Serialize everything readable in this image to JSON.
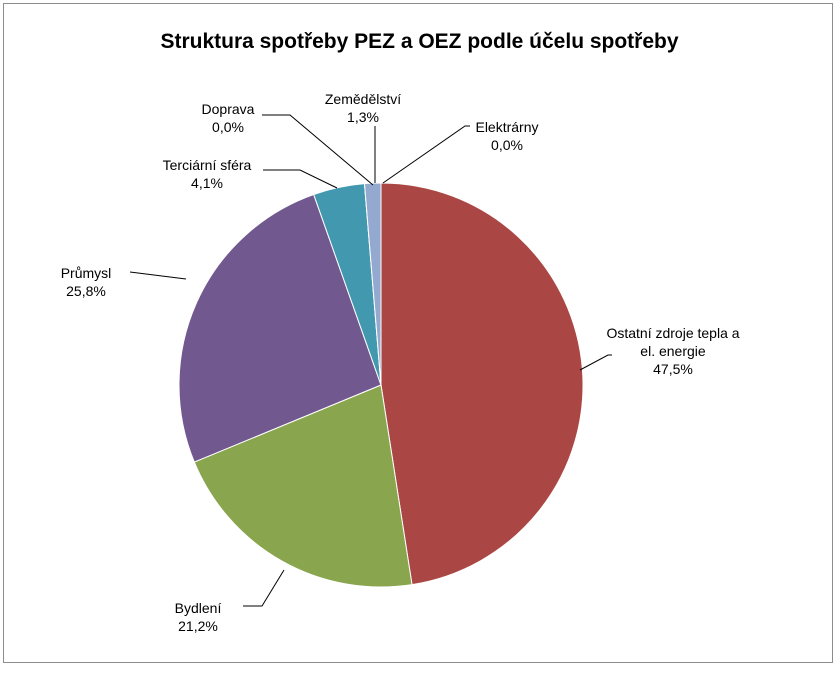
{
  "chart_data": {
    "type": "pie",
    "title": "Struktura spotřeby PEZ a OEZ podle účelu spotřeby",
    "categories": [
      "Elektrárny",
      "Ostatní zdroje tepla a el. energie",
      "Bydlení",
      "Průmysl",
      "Terciární sféra",
      "Doprava",
      "Zemědělství"
    ],
    "values": [
      0.0,
      47.5,
      21.2,
      25.8,
      4.1,
      0.0,
      1.3
    ],
    "value_labels": [
      "0,0%",
      "47,5%",
      "21,2%",
      "25,8%",
      "4,1%",
      "0,0%",
      "1,3%"
    ],
    "colors": [
      "#4f81bd",
      "#aa4643",
      "#89a54e",
      "#71588f",
      "#4198af",
      "#db843d",
      "#93a9cf"
    ]
  }
}
